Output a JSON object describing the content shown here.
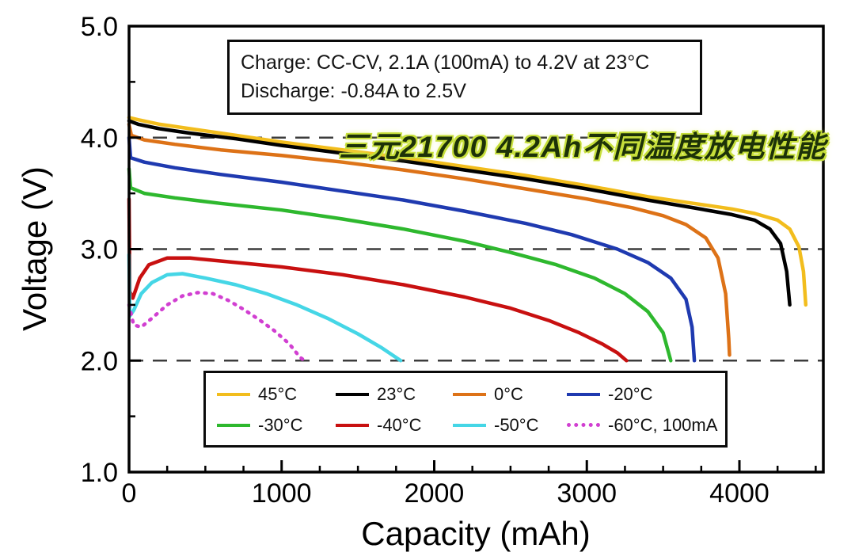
{
  "annotation": {
    "line1": "Charge: CC-CV, 2.1A (100mA) to 4.2V at 23°C",
    "line2": "Discharge: -0.84A to 2.5V"
  },
  "chart_data": {
    "type": "line",
    "title": "三元21700 4.2Ah不同温度放电性能",
    "xlabel": "Capacity (mAh)",
    "ylabel": "Voltage (V)",
    "xlim": [
      0,
      4550
    ],
    "ylim": [
      1.0,
      5.0
    ],
    "x_ticks": [
      0,
      1000,
      2000,
      3000,
      4000
    ],
    "x_tick_labels": [
      "0",
      "1000",
      "2000",
      "3000",
      "4000"
    ],
    "x_minor_step": 250,
    "y_ticks": [
      1.0,
      2.0,
      3.0,
      4.0,
      5.0
    ],
    "y_tick_labels": [
      "1.0",
      "2.0",
      "3.0",
      "4.0",
      "5.0"
    ],
    "y_minor_step": 0.5,
    "gridlines_y": [
      2.0,
      3.0,
      4.0
    ],
    "grid": "dashed-horizontal",
    "legend_position": "bottom-inside",
    "series": [
      {
        "name": "45°C",
        "color": "#f2bd1d",
        "dash": null,
        "legend_dash": "solid",
        "points": [
          [
            0,
            4.18
          ],
          [
            60,
            4.16
          ],
          [
            200,
            4.12
          ],
          [
            400,
            4.08
          ],
          [
            700,
            4.02
          ],
          [
            1000,
            3.96
          ],
          [
            1400,
            3.89
          ],
          [
            1800,
            3.82
          ],
          [
            2200,
            3.74
          ],
          [
            2600,
            3.66
          ],
          [
            3000,
            3.57
          ],
          [
            3400,
            3.47
          ],
          [
            3700,
            3.41
          ],
          [
            3950,
            3.36
          ],
          [
            4100,
            3.32
          ],
          [
            4250,
            3.26
          ],
          [
            4330,
            3.18
          ],
          [
            4390,
            3.02
          ],
          [
            4420,
            2.8
          ],
          [
            4435,
            2.5
          ]
        ]
      },
      {
        "name": "23°C",
        "color": "#000000",
        "dash": null,
        "legend_dash": "solid",
        "points": [
          [
            0,
            4.15
          ],
          [
            60,
            4.12
          ],
          [
            200,
            4.08
          ],
          [
            400,
            4.04
          ],
          [
            700,
            3.99
          ],
          [
            1000,
            3.93
          ],
          [
            1400,
            3.86
          ],
          [
            1800,
            3.79
          ],
          [
            2200,
            3.71
          ],
          [
            2600,
            3.63
          ],
          [
            3000,
            3.54
          ],
          [
            3400,
            3.44
          ],
          [
            3700,
            3.37
          ],
          [
            3950,
            3.31
          ],
          [
            4100,
            3.26
          ],
          [
            4200,
            3.18
          ],
          [
            4270,
            3.05
          ],
          [
            4310,
            2.8
          ],
          [
            4330,
            2.5
          ]
        ]
      },
      {
        "name": "0°C",
        "color": "#dd7217",
        "dash": null,
        "legend_dash": "solid",
        "points": [
          [
            0,
            4.12
          ],
          [
            15,
            4.02
          ],
          [
            100,
            3.98
          ],
          [
            300,
            3.94
          ],
          [
            600,
            3.89
          ],
          [
            1000,
            3.84
          ],
          [
            1400,
            3.78
          ],
          [
            1800,
            3.71
          ],
          [
            2200,
            3.63
          ],
          [
            2600,
            3.54
          ],
          [
            3000,
            3.45
          ],
          [
            3300,
            3.37
          ],
          [
            3500,
            3.3
          ],
          [
            3650,
            3.22
          ],
          [
            3780,
            3.1
          ],
          [
            3860,
            2.92
          ],
          [
            3910,
            2.6
          ],
          [
            3930,
            2.2
          ],
          [
            3935,
            2.05
          ]
        ]
      },
      {
        "name": "-20°C",
        "color": "#1f3ab0",
        "dash": null,
        "legend_dash": "solid",
        "points": [
          [
            0,
            4.0
          ],
          [
            10,
            3.82
          ],
          [
            100,
            3.78
          ],
          [
            300,
            3.73
          ],
          [
            600,
            3.67
          ],
          [
            1000,
            3.6
          ],
          [
            1400,
            3.52
          ],
          [
            1800,
            3.44
          ],
          [
            2200,
            3.34
          ],
          [
            2600,
            3.23
          ],
          [
            2900,
            3.13
          ],
          [
            3200,
            3.0
          ],
          [
            3400,
            2.88
          ],
          [
            3550,
            2.74
          ],
          [
            3650,
            2.55
          ],
          [
            3690,
            2.3
          ],
          [
            3705,
            2.0
          ]
        ]
      },
      {
        "name": "-30°C",
        "color": "#2eb82e",
        "dash": null,
        "legend_dash": "solid",
        "points": [
          [
            0,
            3.72
          ],
          [
            10,
            3.55
          ],
          [
            100,
            3.5
          ],
          [
            300,
            3.46
          ],
          [
            600,
            3.41
          ],
          [
            1000,
            3.35
          ],
          [
            1400,
            3.27
          ],
          [
            1800,
            3.18
          ],
          [
            2200,
            3.07
          ],
          [
            2500,
            2.97
          ],
          [
            2800,
            2.86
          ],
          [
            3050,
            2.74
          ],
          [
            3250,
            2.6
          ],
          [
            3400,
            2.44
          ],
          [
            3500,
            2.25
          ],
          [
            3550,
            2.0
          ]
        ]
      },
      {
        "name": "-40°C",
        "color": "#c81010",
        "dash": null,
        "legend_dash": "solid",
        "points": [
          [
            0,
            3.45
          ],
          [
            5,
            2.62
          ],
          [
            25,
            2.56
          ],
          [
            70,
            2.74
          ],
          [
            130,
            2.86
          ],
          [
            250,
            2.92
          ],
          [
            400,
            2.92
          ],
          [
            700,
            2.88
          ],
          [
            1000,
            2.84
          ],
          [
            1400,
            2.77
          ],
          [
            1800,
            2.68
          ],
          [
            2200,
            2.57
          ],
          [
            2500,
            2.47
          ],
          [
            2750,
            2.36
          ],
          [
            2950,
            2.25
          ],
          [
            3100,
            2.15
          ],
          [
            3200,
            2.07
          ],
          [
            3260,
            2.0
          ]
        ]
      },
      {
        "name": "-50°C",
        "color": "#45d6e6",
        "dash": null,
        "legend_dash": "solid",
        "points": [
          [
            0,
            2.95
          ],
          [
            5,
            2.4
          ],
          [
            30,
            2.45
          ],
          [
            80,
            2.6
          ],
          [
            150,
            2.7
          ],
          [
            250,
            2.77
          ],
          [
            350,
            2.78
          ],
          [
            500,
            2.74
          ],
          [
            700,
            2.68
          ],
          [
            900,
            2.6
          ],
          [
            1100,
            2.5
          ],
          [
            1300,
            2.38
          ],
          [
            1500,
            2.24
          ],
          [
            1650,
            2.12
          ],
          [
            1780,
            2.0
          ]
        ]
      },
      {
        "name": "-60°C, 100mA",
        "color": "#d13fd1",
        "dash": "2 8",
        "legend_dash": "dotted",
        "points": [
          [
            0,
            2.5
          ],
          [
            30,
            2.32
          ],
          [
            80,
            2.3
          ],
          [
            150,
            2.38
          ],
          [
            250,
            2.5
          ],
          [
            350,
            2.58
          ],
          [
            450,
            2.61
          ],
          [
            550,
            2.6
          ],
          [
            650,
            2.54
          ],
          [
            750,
            2.46
          ],
          [
            850,
            2.37
          ],
          [
            950,
            2.27
          ],
          [
            1050,
            2.15
          ],
          [
            1120,
            2.03
          ],
          [
            1150,
            2.0
          ]
        ]
      }
    ]
  }
}
